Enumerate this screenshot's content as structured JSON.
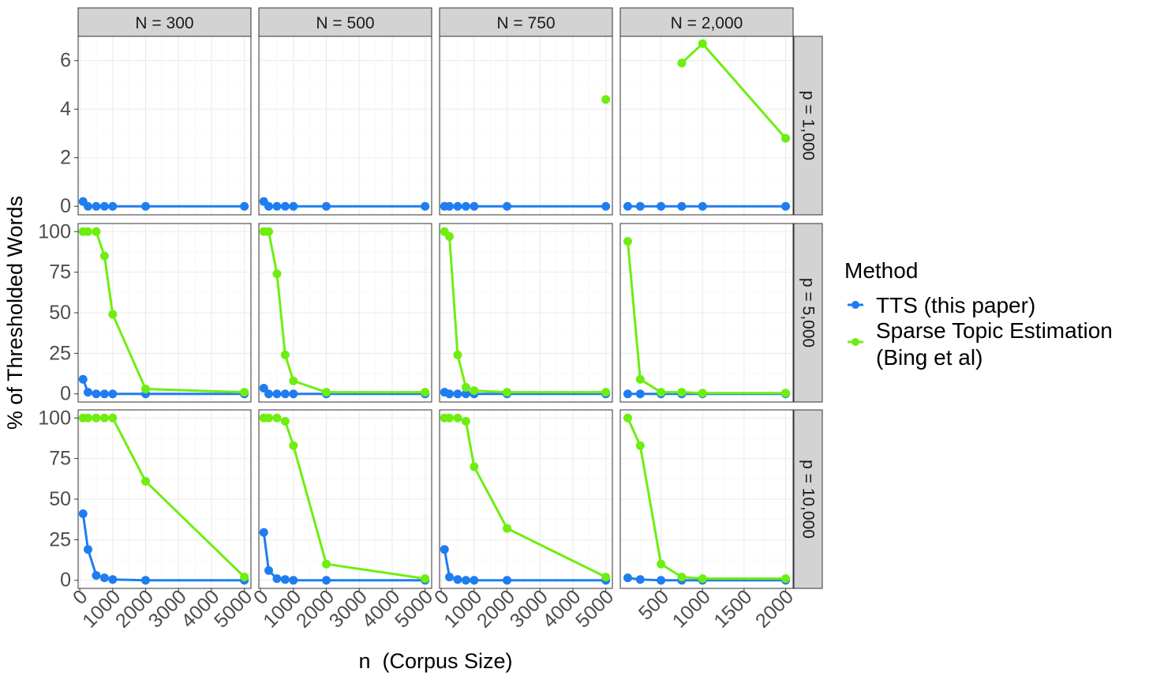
{
  "chart_data": {
    "type": "line",
    "xlabel": "n  (Corpus Size)",
    "ylabel": "% of Thresholded Words",
    "legend": {
      "title": "Method",
      "position": "right",
      "entries": [
        {
          "label": "TTS (this paper)",
          "color": "#1f7df0"
        },
        {
          "label_lines": [
            "Sparse Topic Estimation",
            "(Bing et al)"
          ],
          "color": "#6eee10"
        }
      ]
    },
    "grid": true,
    "columns": [
      {
        "label": "N = 300",
        "xlim": [
          -50,
          5200
        ],
        "xticks": [
          0,
          1000,
          2000,
          3000,
          4000,
          5000
        ],
        "xtick_labels": [
          "0",
          "1000",
          "2000",
          "3000",
          "4000",
          "5000"
        ]
      },
      {
        "label": "N = 500",
        "xlim": [
          -50,
          5200
        ],
        "xticks": [
          0,
          1000,
          2000,
          3000,
          4000,
          5000
        ],
        "xtick_labels": [
          "0",
          "1000",
          "2000",
          "3000",
          "4000",
          "5000"
        ]
      },
      {
        "label": "N = 750",
        "xlim": [
          -50,
          5200
        ],
        "xticks": [
          0,
          1000,
          2000,
          3000,
          4000,
          5000
        ],
        "xtick_labels": [
          "0",
          "1000",
          "2000",
          "3000",
          "4000",
          "5000"
        ]
      },
      {
        "label": "N = 2,000",
        "xlim": [
          10,
          2090
        ],
        "xticks": [
          500,
          1000,
          1500,
          2000
        ],
        "xtick_labels": [
          "500",
          "1000",
          "1500",
          "2000"
        ]
      }
    ],
    "rows": [
      {
        "label": "p = 1,000",
        "ylim": [
          -0.35,
          7.0
        ],
        "yticks": [
          0,
          2,
          4,
          6
        ],
        "ytick_labels": [
          "0",
          "2",
          "4",
          "6"
        ]
      },
      {
        "label": "p = 5,000",
        "ylim": [
          -5,
          105
        ],
        "yticks": [
          0,
          25,
          50,
          75,
          100
        ],
        "ytick_labels": [
          "0",
          "25",
          "50",
          "75",
          "100"
        ]
      },
      {
        "label": "p = 10,000",
        "ylim": [
          -5,
          105
        ],
        "yticks": [
          0,
          25,
          50,
          75,
          100
        ],
        "ytick_labels": [
          "0",
          "25",
          "50",
          "75",
          "100"
        ]
      }
    ],
    "panels": [
      [
        {
          "tts": {
            "x": [
              100,
              250,
              500,
              750,
              1000,
              2000,
              5000
            ],
            "y": [
              0.2,
              0,
              0,
              0,
              0,
              0,
              0
            ]
          },
          "ste": {
            "x": [],
            "y": []
          }
        },
        {
          "tts": {
            "x": [
              100,
              250,
              500,
              750,
              1000,
              2000,
              5000
            ],
            "y": [
              0.2,
              0,
              0,
              0,
              0,
              0,
              0
            ]
          },
          "ste": {
            "x": [],
            "y": []
          }
        },
        {
          "tts": {
            "x": [
              100,
              250,
              500,
              750,
              1000,
              2000,
              5000
            ],
            "y": [
              0,
              0,
              0,
              0,
              0,
              0,
              0
            ]
          },
          "ste": {
            "x": [
              5000
            ],
            "y": [
              4.4
            ]
          }
        },
        {
          "tts": {
            "x": [
              100,
              250,
              500,
              750,
              1000,
              2000
            ],
            "y": [
              0,
              0,
              0,
              0,
              0,
              0
            ]
          },
          "ste": {
            "x": [
              750,
              1000,
              2000
            ],
            "y": [
              5.9,
              6.7,
              2.8
            ]
          }
        }
      ],
      [
        {
          "tts": {
            "x": [
              100,
              250,
              500,
              750,
              1000,
              2000,
              5000
            ],
            "y": [
              9,
              1,
              0,
              0,
              0,
              0,
              0
            ]
          },
          "ste": {
            "x": [
              100,
              250,
              500,
              750,
              1000,
              2000,
              5000
            ],
            "y": [
              100,
              100,
              100,
              85,
              49,
              3,
              1
            ]
          }
        },
        {
          "tts": {
            "x": [
              100,
              250,
              500,
              750,
              1000,
              2000,
              5000
            ],
            "y": [
              3.5,
              0,
              0,
              0,
              0,
              0,
              0
            ]
          },
          "ste": {
            "x": [
              100,
              250,
              500,
              750,
              1000,
              2000,
              5000
            ],
            "y": [
              100,
              100,
              74,
              24,
              8,
              1,
              1
            ]
          }
        },
        {
          "tts": {
            "x": [
              100,
              250,
              500,
              750,
              1000,
              2000,
              5000
            ],
            "y": [
              1,
              0,
              0,
              0,
              0,
              0,
              0
            ]
          },
          "ste": {
            "x": [
              100,
              250,
              500,
              750,
              1000,
              2000,
              5000
            ],
            "y": [
              100,
              97,
              24,
              4,
              2,
              1,
              1
            ]
          }
        },
        {
          "tts": {
            "x": [
              100,
              250,
              500,
              750,
              1000,
              2000
            ],
            "y": [
              0,
              0,
              0,
              0,
              0,
              0
            ]
          },
          "ste": {
            "x": [
              100,
              250,
              500,
              750,
              1000,
              2000
            ],
            "y": [
              94,
              9,
              1,
              1,
              0.5,
              0.5
            ]
          }
        }
      ],
      [
        {
          "tts": {
            "x": [
              100,
              250,
              500,
              750,
              1000,
              2000,
              5000
            ],
            "y": [
              41,
              19,
              3,
              1.5,
              0.5,
              0,
              0
            ]
          },
          "ste": {
            "x": [
              100,
              250,
              500,
              750,
              1000,
              2000,
              5000
            ],
            "y": [
              100,
              100,
              100,
              100,
              100,
              61,
              2
            ]
          }
        },
        {
          "tts": {
            "x": [
              100,
              250,
              500,
              750,
              1000,
              2000,
              5000
            ],
            "y": [
              29.5,
              6,
              1,
              0.5,
              0,
              0,
              0
            ]
          },
          "ste": {
            "x": [
              100,
              250,
              500,
              750,
              1000,
              2000,
              5000
            ],
            "y": [
              100,
              100,
              100,
              98,
              83,
              10,
              1
            ]
          }
        },
        {
          "tts": {
            "x": [
              100,
              250,
              500,
              750,
              1000,
              2000,
              5000
            ],
            "y": [
              19,
              2,
              0.5,
              0,
              0,
              0,
              0
            ]
          },
          "ste": {
            "x": [
              100,
              250,
              500,
              750,
              1000,
              2000,
              5000
            ],
            "y": [
              100,
              100,
              100,
              98,
              70,
              32,
              2
            ]
          }
        },
        {
          "tts": {
            "x": [
              100,
              250,
              500,
              750,
              1000,
              2000
            ],
            "y": [
              1.5,
              0.5,
              0,
              0,
              0,
              0
            ]
          },
          "ste": {
            "x": [
              100,
              250,
              500,
              750,
              1000,
              2000
            ],
            "y": [
              100,
              83,
              10,
              2,
              1,
              1
            ]
          }
        }
      ]
    ]
  }
}
